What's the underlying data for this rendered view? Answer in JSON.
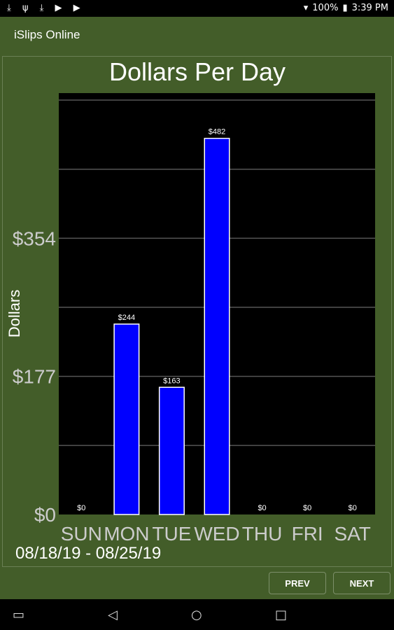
{
  "status_bar": {
    "left_icons": [
      "download-icon",
      "usb-icon",
      "download-icon",
      "play-store-icon",
      "play-store-icon"
    ],
    "battery": "100%",
    "time": "3:39 PM"
  },
  "app_bar": {
    "title": "iSlips Online"
  },
  "chart_data": {
    "type": "bar",
    "title": "Dollars Per Day",
    "ylabel": "Dollars",
    "xlabel": "",
    "categories": [
      "SUN",
      "MON",
      "TUE",
      "WED",
      "THU",
      "FRI",
      "SAT"
    ],
    "values": [
      0,
      244,
      163,
      482,
      0,
      0,
      0
    ],
    "data_labels": [
      "$0",
      "$244",
      "$163",
      "$482",
      "$0",
      "$0",
      "$0"
    ],
    "y_ticks": [
      "$0",
      "$177",
      "$354"
    ],
    "y_tick_values": [
      0,
      177,
      354
    ],
    "ylim": [
      0,
      540
    ],
    "grid": true,
    "bar_color": "#0000ff",
    "plot_background": "#000000",
    "date_range": "08/18/19 - 08/25/19"
  },
  "buttons": {
    "prev": "PREV",
    "next": "NEXT"
  },
  "nav_bar": {
    "icons": [
      "recents-icon",
      "back-icon",
      "home-icon",
      "overview-icon"
    ]
  }
}
